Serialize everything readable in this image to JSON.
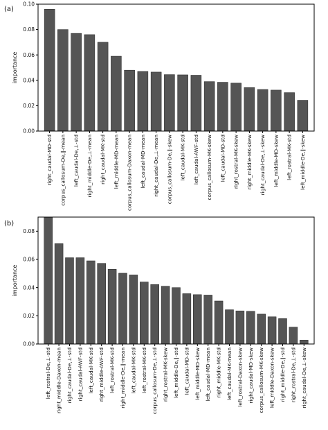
{
  "chart_data": [
    {
      "type": "bar",
      "panel_label": "(a)",
      "ylabel": "importance",
      "ylim": [
        0,
        0.1
      ],
      "yticks": [
        "0.00",
        "0.02",
        "0.04",
        "0.06",
        "0.08",
        "0.10"
      ],
      "yticks_values": [
        0,
        0.02,
        0.04,
        0.06,
        0.08,
        0.1
      ],
      "categories": [
        "right_caudal-MD-std",
        "corpus_callosum-De,∥-mean",
        "left_caudal-De,⊥-std",
        "right_middle-De,⊥-mean",
        "right_caudal-MK-std",
        "left_middle-MD-mean",
        "corpus_callosum-Daxon-mean",
        "left_caudal-MD-mean",
        "right_caudal-De,⊥-mean",
        "corpus_callosum-De,∥-skew",
        "left_caudal-MK-std",
        "left_caudal-AWF-std",
        "corpus_callosum-MK-skew",
        "left_caudal-MD-std",
        "right_rostral-MK-skew",
        "right_middle-MK-skew",
        "right_caudal-De,⊥-skew",
        "left_middle-MD-skew",
        "left_rostral-MK-std",
        "left_middle-De,∥-skew"
      ],
      "values": [
        0.096,
        0.08,
        0.077,
        0.076,
        0.07,
        0.059,
        0.048,
        0.047,
        0.0465,
        0.0445,
        0.0443,
        0.044,
        0.039,
        0.0385,
        0.0378,
        0.0343,
        0.0328,
        0.0323,
        0.0303,
        0.0243
      ]
    },
    {
      "type": "bar",
      "panel_label": "(b)",
      "ylabel": "importance",
      "ylim": [
        0,
        0.09
      ],
      "yticks": [
        "0.00",
        "0.02",
        "0.04",
        "0.06",
        "0.08"
      ],
      "yticks_values": [
        0,
        0.02,
        0.04,
        0.06,
        0.08
      ],
      "categories": [
        "left_rostral-De,⊥-std",
        "right_middle-Daxon-mean",
        "right_caudal-De,⊥-std",
        "right_caudal-AWF-std",
        "left_caudal-MK-std",
        "right_middle-AWF-std",
        "left_rostral-MK-std",
        "right_middle-De,∥-mean",
        "left_caudal-MK-std",
        "left_rostral-MK-std",
        "corpus_callosum-De,⊥-std",
        "right_rostral-MK-skew",
        "left_middle-De,∥-std",
        "left_caudal-MD-std",
        "left_middle-MD-skew",
        "left_caudal-MD-mean",
        "right_middle-MK-std",
        "left_caudal-MK-mean",
        "left_rostral-Daxon-skew",
        "right_caudal-MD-skew",
        "corpus_callosum-MK-skew",
        "left_middle-Daxon-skew",
        "right_middle-De,∥-std",
        "right_rostral-De,⊥-std",
        "right_caudal-De,⊥-skew"
      ],
      "values": [
        0.09,
        0.0712,
        0.0612,
        0.0612,
        0.059,
        0.0572,
        0.053,
        0.0502,
        0.049,
        0.044,
        0.0422,
        0.041,
        0.04,
        0.0357,
        0.035,
        0.0347,
        0.0305,
        0.0243,
        0.0235,
        0.0232,
        0.0212,
        0.0193,
        0.018,
        0.012,
        0.0028
      ]
    }
  ]
}
